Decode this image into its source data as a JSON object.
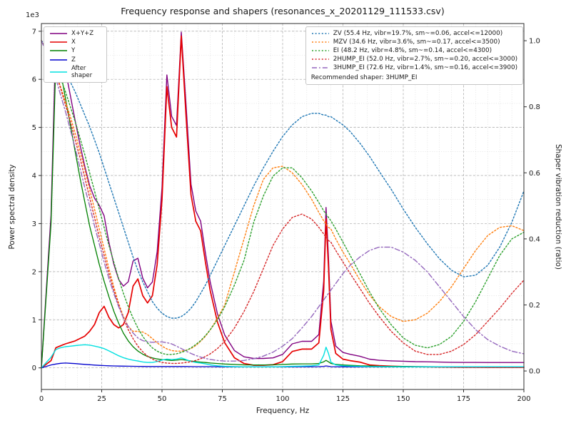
{
  "figure": {
    "title": "Frequency response and shapers (resonances_x_20201129_111533.csv)",
    "xlabel": "Frequency, Hz",
    "ylabel_left": "Power spectral density",
    "ylabel_right": "Shaper vibration reduction (ratio)",
    "offset_text": "1e3",
    "recommended": "Recommended shaper: 3HUMP_EI"
  },
  "chart_data": {
    "type": "line",
    "xlim": [
      0,
      200
    ],
    "ylim_left": [
      -450,
      7160
    ],
    "ylim_right": [
      -0.056,
      1.052
    ],
    "x_ticks": [
      0,
      25,
      50,
      75,
      100,
      125,
      150,
      175,
      200
    ],
    "y_left_ticks": [
      0,
      1,
      2,
      3,
      4,
      5,
      6,
      7
    ],
    "y_left_multiplier": 1000,
    "y_right_ticks": [
      "0.0",
      "0.2",
      "0.4",
      "0.6",
      "0.8",
      "1.0"
    ],
    "grid": "both",
    "x": [
      0,
      4,
      6,
      8,
      10,
      12,
      14,
      16,
      18,
      20,
      22,
      24,
      26,
      28,
      30,
      32,
      34,
      36,
      38,
      40,
      42,
      44,
      46,
      48,
      50,
      52,
      54,
      56,
      58,
      60,
      62,
      64,
      66,
      68,
      70,
      73,
      76,
      80,
      84,
      88,
      92,
      96,
      100,
      104,
      108,
      112,
      115,
      117,
      118,
      119,
      120,
      122,
      125,
      128,
      132,
      136,
      140,
      145,
      150,
      155,
      160,
      165,
      170,
      175,
      180,
      185,
      190,
      195,
      200
    ],
    "psd_series": [
      {
        "name": "xyz",
        "label": "X+Y+Z",
        "color": "#800080",
        "dash": "solid",
        "width": 1.4,
        "values": [
          0,
          3180,
          6900,
          6700,
          6180,
          5660,
          5140,
          4640,
          4190,
          3790,
          3530,
          3380,
          3160,
          2610,
          2160,
          1840,
          1700,
          1790,
          2220,
          2280,
          1865,
          1665,
          1785,
          2415,
          3750,
          6090,
          5230,
          5040,
          6980,
          5440,
          3820,
          3260,
          3050,
          2390,
          1780,
          1120,
          680,
          360,
          230,
          195,
          195,
          207,
          280,
          500,
          552,
          552,
          692,
          1805,
          3335,
          2305,
          972,
          452,
          320,
          282,
          242,
          180,
          157,
          145,
          138,
          128,
          125,
          120,
          115,
          112,
          112,
          110,
          110,
          110,
          110
        ]
      },
      {
        "name": "x",
        "label": "X",
        "color": "#e60000",
        "dash": "solid",
        "width": 1.7,
        "values": [
          0,
          150,
          420,
          460,
          500,
          530,
          560,
          610,
          660,
          760,
          900,
          1150,
          1280,
          1050,
          900,
          830,
          900,
          1150,
          1700,
          1850,
          1500,
          1350,
          1500,
          2150,
          3500,
          5850,
          5000,
          4800,
          6900,
          5200,
          3600,
          3050,
          2850,
          2200,
          1600,
          950,
          520,
          210,
          90,
          55,
          55,
          65,
          130,
          340,
          390,
          390,
          520,
          1600,
          3100,
          2100,
          800,
          300,
          180,
          150,
          120,
          60,
          45,
          35,
          28,
          22,
          20,
          18,
          15,
          12,
          12,
          10,
          10,
          10,
          10
        ]
      },
      {
        "name": "y",
        "label": "Y",
        "color": "#008000",
        "dash": "solid",
        "width": 1.3,
        "values": [
          0,
          3000,
          6400,
          6150,
          5600,
          5050,
          4500,
          3950,
          3450,
          2950,
          2550,
          2150,
          1800,
          1480,
          1180,
          930,
          720,
          560,
          440,
          350,
          285,
          235,
          205,
          185,
          172,
          162,
          152,
          160,
          172,
          160,
          142,
          130,
          120,
          110,
          100,
          90,
          80,
          70,
          62,
          60,
          60,
          62,
          70,
          80,
          82,
          82,
          92,
          125,
          155,
          125,
          92,
          72,
          60,
          52,
          42,
          40,
          32,
          30,
          30,
          26,
          25,
          22,
          20,
          20,
          20,
          20,
          20,
          20,
          20
        ]
      },
      {
        "name": "z",
        "label": "Z",
        "color": "#0000cd",
        "dash": "solid",
        "width": 1.3,
        "values": [
          0,
          60,
          80,
          95,
          100,
          95,
          88,
          80,
          72,
          65,
          58,
          52,
          47,
          43,
          40,
          37,
          35,
          33,
          32,
          30,
          29,
          28,
          27,
          27,
          28,
          28,
          27,
          27,
          28,
          27,
          26,
          25,
          25,
          24,
          24,
          23,
          22,
          22,
          21,
          21,
          21,
          21,
          22,
          22,
          23,
          23,
          24,
          30,
          40,
          32,
          25,
          23,
          22,
          22,
          21,
          21,
          20,
          20,
          20,
          20,
          20,
          20,
          20,
          20,
          20,
          20,
          20,
          20,
          20
        ]
      },
      {
        "name": "after-shaper",
        "label": "After shaper",
        "color": "#00e0e0",
        "dash": "solid",
        "width": 1.4,
        "values": [
          0,
          220,
          380,
          420,
          440,
          450,
          462,
          472,
          480,
          472,
          452,
          430,
          400,
          352,
          302,
          252,
          212,
          182,
          160,
          142,
          122,
          112,
          112,
          132,
          162,
          182,
          172,
          182,
          205,
          172,
          132,
          112,
          100,
          82,
          62,
          42,
          32,
          26,
          22,
          20,
          20,
          20,
          26,
          32,
          36,
          42,
          62,
          260,
          430,
          300,
          120,
          60,
          42,
          36,
          30,
          26,
          25,
          22,
          20,
          20,
          20,
          20,
          20,
          20,
          20,
          20,
          20,
          20,
          20
        ]
      }
    ],
    "shaper_series": [
      {
        "name": "zv",
        "label": "ZV (55.4 Hz, vibr=19.7%, sm~=0.06, accel<=12000)",
        "color": "#1f77b4",
        "dash": "dot",
        "width": 1.4,
        "values": [
          1.0,
          0.975,
          0.955,
          0.93,
          0.905,
          0.875,
          0.845,
          0.81,
          0.775,
          0.74,
          0.7,
          0.66,
          0.615,
          0.57,
          0.525,
          0.48,
          0.435,
          0.39,
          0.345,
          0.305,
          0.27,
          0.24,
          0.21,
          0.19,
          0.175,
          0.165,
          0.16,
          0.16,
          0.165,
          0.175,
          0.19,
          0.21,
          0.235,
          0.26,
          0.29,
          0.335,
          0.38,
          0.44,
          0.5,
          0.56,
          0.615,
          0.665,
          0.71,
          0.745,
          0.77,
          0.78,
          0.78,
          0.775,
          0.775,
          0.77,
          0.77,
          0.76,
          0.745,
          0.725,
          0.69,
          0.65,
          0.605,
          0.55,
          0.49,
          0.435,
          0.385,
          0.34,
          0.305,
          0.285,
          0.29,
          0.32,
          0.375,
          0.45,
          0.545
        ]
      },
      {
        "name": "mzv",
        "label": "MZV (34.6 Hz, vibr=3.6%, sm~=0.17, accel<=3500)",
        "color": "#ff7f0e",
        "dash": "dot",
        "width": 1.4,
        "values": [
          1.0,
          0.935,
          0.9,
          0.86,
          0.815,
          0.77,
          0.72,
          0.665,
          0.61,
          0.55,
          0.49,
          0.43,
          0.37,
          0.31,
          0.255,
          0.205,
          0.165,
          0.135,
          0.12,
          0.12,
          0.118,
          0.11,
          0.098,
          0.085,
          0.075,
          0.067,
          0.062,
          0.06,
          0.06,
          0.063,
          0.068,
          0.077,
          0.09,
          0.105,
          0.125,
          0.16,
          0.2,
          0.3,
          0.4,
          0.5,
          0.58,
          0.615,
          0.62,
          0.6,
          0.565,
          0.52,
          0.48,
          0.455,
          0.445,
          0.435,
          0.43,
          0.4,
          0.36,
          0.325,
          0.275,
          0.23,
          0.195,
          0.165,
          0.15,
          0.155,
          0.175,
          0.21,
          0.255,
          0.31,
          0.365,
          0.41,
          0.435,
          0.44,
          0.425
        ]
      },
      {
        "name": "ei",
        "label": "EI (48.2 Hz, vibr=4.8%, sm~=0.14, accel<=4300)",
        "color": "#2ca02c",
        "dash": "dot",
        "width": 1.4,
        "values": [
          1.0,
          0.95,
          0.92,
          0.885,
          0.845,
          0.8,
          0.755,
          0.705,
          0.655,
          0.6,
          0.545,
          0.49,
          0.435,
          0.38,
          0.33,
          0.28,
          0.235,
          0.195,
          0.16,
          0.13,
          0.105,
          0.085,
          0.07,
          0.06,
          0.053,
          0.05,
          0.05,
          0.052,
          0.056,
          0.062,
          0.07,
          0.08,
          0.092,
          0.107,
          0.125,
          0.155,
          0.195,
          0.26,
          0.335,
          0.45,
          0.53,
          0.59,
          0.615,
          0.615,
          0.585,
          0.545,
          0.51,
          0.485,
          0.475,
          0.465,
          0.455,
          0.43,
          0.39,
          0.35,
          0.295,
          0.24,
          0.19,
          0.14,
          0.1,
          0.078,
          0.07,
          0.08,
          0.105,
          0.15,
          0.21,
          0.28,
          0.35,
          0.4,
          0.42
        ]
      },
      {
        "name": "2hump-ei",
        "label": "2HUMP_EI (52.0 Hz, vibr=2.7%, sm~=0.20, accel<=3000)",
        "color": "#d62728",
        "dash": "dot",
        "width": 1.4,
        "values": [
          1.0,
          0.94,
          0.9,
          0.855,
          0.805,
          0.755,
          0.7,
          0.645,
          0.585,
          0.525,
          0.465,
          0.405,
          0.35,
          0.295,
          0.245,
          0.2,
          0.16,
          0.125,
          0.098,
          0.075,
          0.058,
          0.045,
          0.036,
          0.03,
          0.026,
          0.024,
          0.023,
          0.023,
          0.024,
          0.026,
          0.028,
          0.032,
          0.037,
          0.044,
          0.052,
          0.068,
          0.09,
          0.13,
          0.18,
          0.24,
          0.31,
          0.38,
          0.43,
          0.465,
          0.475,
          0.46,
          0.435,
          0.415,
          0.405,
          0.395,
          0.39,
          0.365,
          0.33,
          0.295,
          0.25,
          0.205,
          0.165,
          0.12,
          0.085,
          0.06,
          0.05,
          0.05,
          0.06,
          0.08,
          0.11,
          0.15,
          0.19,
          0.235,
          0.275
        ]
      },
      {
        "name": "3hump-ei",
        "label": "3HUMP_EI (72.6 Hz, vibr=1.4%, sm~=0.16, accel<=3900)",
        "color": "#9467bd",
        "dash": "dashdot",
        "width": 1.4,
        "values": [
          1.0,
          0.93,
          0.885,
          0.835,
          0.785,
          0.73,
          0.675,
          0.615,
          0.555,
          0.5,
          0.44,
          0.385,
          0.33,
          0.28,
          0.235,
          0.195,
          0.16,
          0.135,
          0.115,
          0.1,
          0.092,
          0.088,
          0.087,
          0.088,
          0.088,
          0.086,
          0.082,
          0.075,
          0.068,
          0.06,
          0.053,
          0.047,
          0.042,
          0.038,
          0.035,
          0.032,
          0.03,
          0.03,
          0.032,
          0.037,
          0.045,
          0.057,
          0.075,
          0.098,
          0.13,
          0.165,
          0.195,
          0.215,
          0.225,
          0.235,
          0.245,
          0.265,
          0.295,
          0.32,
          0.345,
          0.365,
          0.375,
          0.375,
          0.36,
          0.335,
          0.3,
          0.255,
          0.21,
          0.165,
          0.125,
          0.095,
          0.075,
          0.06,
          0.052
        ]
      }
    ]
  }
}
